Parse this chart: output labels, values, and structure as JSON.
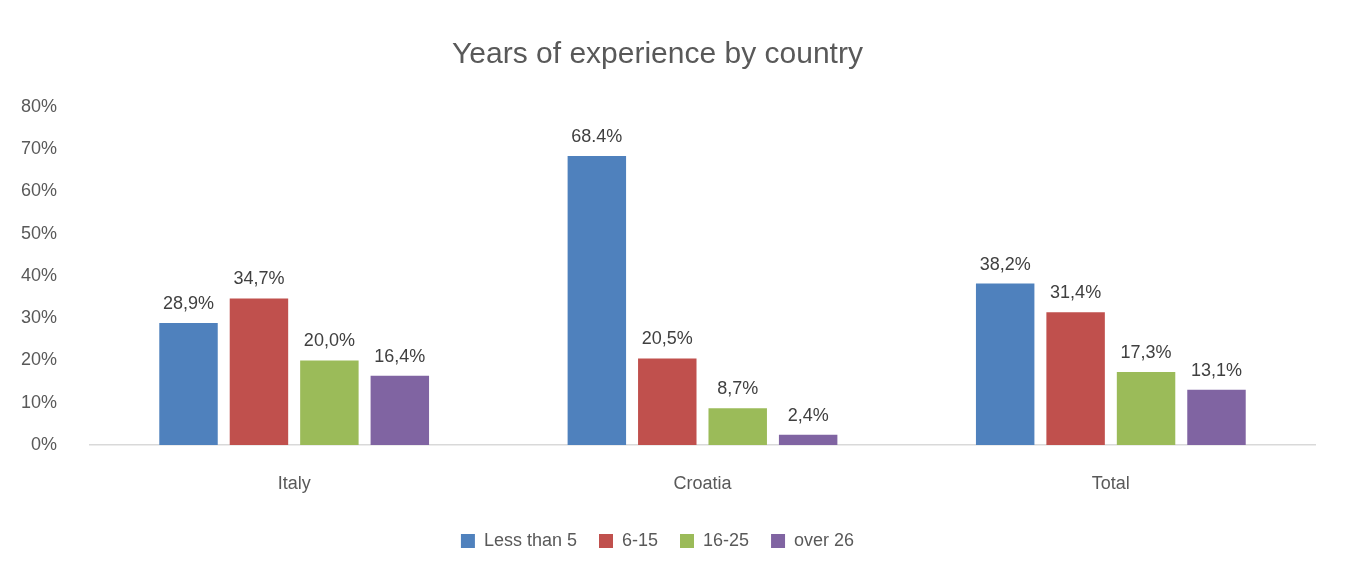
{
  "chart_data": {
    "type": "bar",
    "title": "Years of experience by country",
    "categories": [
      "Italy",
      "Croatia",
      "Total"
    ],
    "series": [
      {
        "name": "Less than 5",
        "color": "#4f81bd",
        "values": [
          28.9,
          68.4,
          38.2
        ],
        "value_labels": [
          "28,9%",
          "68.4%",
          "38,2%"
        ]
      },
      {
        "name": "6-15",
        "color": "#c0504d",
        "values": [
          34.7,
          20.5,
          31.4
        ],
        "value_labels": [
          "34,7%",
          "20,5%",
          "31,4%"
        ]
      },
      {
        "name": "16-25",
        "color": "#9bbb59",
        "values": [
          20.0,
          8.7,
          17.3
        ],
        "value_labels": [
          "20,0%",
          "8,7%",
          "17,3%"
        ]
      },
      {
        "name": "over 26",
        "color": "#8064a2",
        "values": [
          16.4,
          2.4,
          13.1
        ],
        "value_labels": [
          "16,4%",
          "2,4%",
          "13,1%"
        ]
      }
    ],
    "ylim": [
      0,
      80
    ],
    "yticks": [
      {
        "value": 0,
        "label": "0%"
      },
      {
        "value": 10,
        "label": "10%"
      },
      {
        "value": 20,
        "label": "20%"
      },
      {
        "value": 30,
        "label": "30%"
      },
      {
        "value": 40,
        "label": "40%"
      },
      {
        "value": 50,
        "label": "50%"
      },
      {
        "value": 60,
        "label": "60%"
      },
      {
        "value": 70,
        "label": "70%"
      },
      {
        "value": 80,
        "label": "80%"
      }
    ],
    "grid": false,
    "legend": "bottom"
  }
}
